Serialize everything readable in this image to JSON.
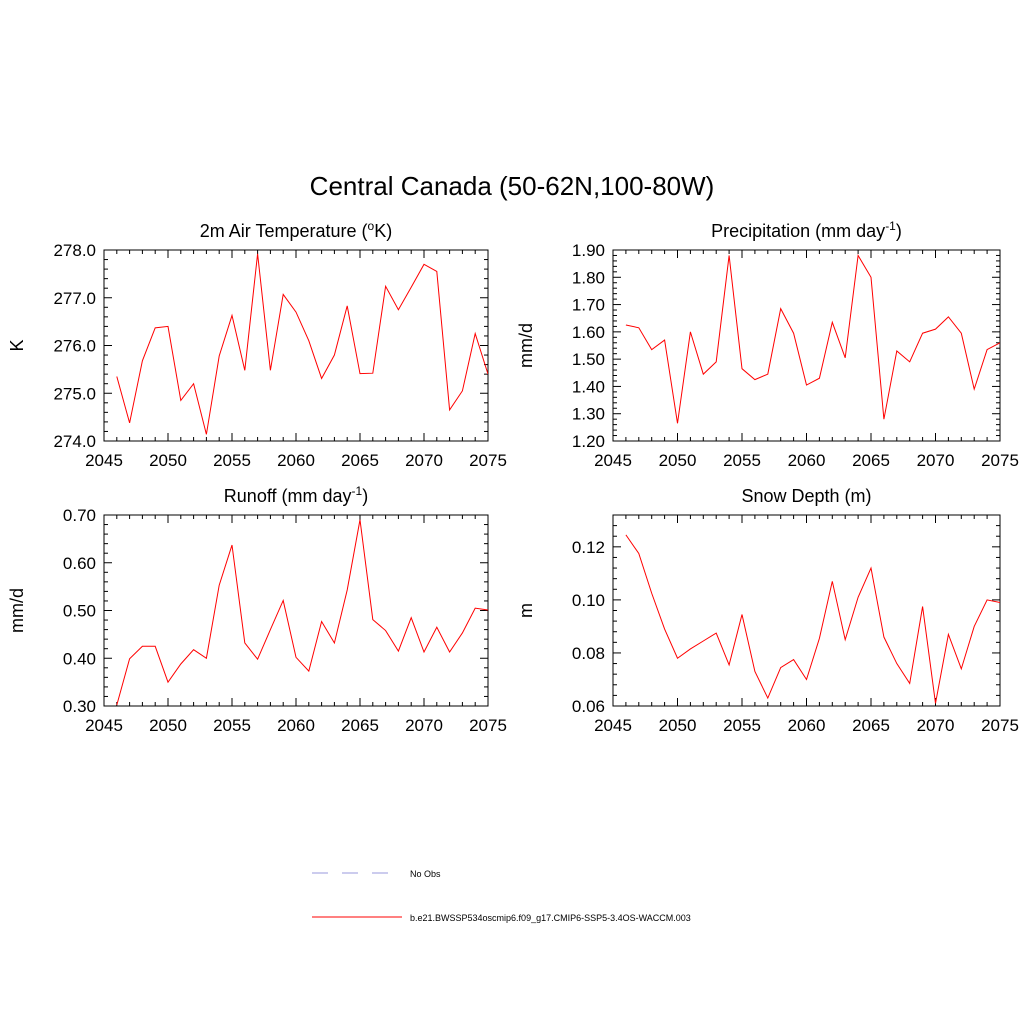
{
  "title": "Central Canada (50-62N,100-80W)",
  "colors": {
    "model": "#ff0000",
    "obs": "#9999dd",
    "axis": "#000000"
  },
  "legend": {
    "placement": "bottom-center",
    "items": [
      {
        "label": "No Obs",
        "style": "dashed",
        "color": "#9999dd"
      },
      {
        "label": "b.e21.BWSSP534oscmip6.f09_g17.CMIP6-SSP5-3.4OS-WACCM.003",
        "style": "solid",
        "color": "#ff0000"
      }
    ]
  },
  "chart_data": [
    {
      "type": "line",
      "title": "2m Air Temperature (",
      "title_sup": "o",
      "title_after": "K)",
      "ylabel": "K",
      "xlim": [
        2045,
        2075
      ],
      "ylim": [
        274.0,
        278.0
      ],
      "xticks": [
        2045,
        2050,
        2055,
        2060,
        2065,
        2070,
        2075
      ],
      "yticks": [
        "274.0",
        "275.0",
        "276.0",
        "277.0",
        "278.0"
      ],
      "x": [
        2046,
        2047,
        2048,
        2049,
        2050,
        2051,
        2052,
        2053,
        2054,
        2055,
        2056,
        2057,
        2058,
        2059,
        2060,
        2061,
        2062,
        2063,
        2064,
        2065,
        2066,
        2067,
        2068,
        2069,
        2070,
        2071,
        2072,
        2073,
        2074,
        2075
      ],
      "series": [
        {
          "name": "b.e21.BWSSP534oscmip6.f09_g17.CMIP6-SSP5-3.4OS-WACCM.003",
          "values": [
            275.35,
            274.38,
            275.68,
            276.37,
            276.4,
            274.85,
            275.2,
            274.14,
            275.78,
            276.63,
            275.48,
            277.92,
            275.48,
            277.07,
            276.7,
            276.1,
            275.31,
            275.8,
            276.83,
            275.41,
            275.42,
            277.24,
            276.75,
            277.22,
            277.7,
            277.55,
            274.65,
            275.05,
            276.25,
            275.4
          ]
        }
      ]
    },
    {
      "type": "line",
      "title": "Precipitation (mm day",
      "title_sup": "-1",
      "title_after": ")",
      "ylabel": "mm/d",
      "xlim": [
        2045,
        2075
      ],
      "ylim": [
        1.2,
        1.9
      ],
      "xticks": [
        2045,
        2050,
        2055,
        2060,
        2065,
        2070,
        2075
      ],
      "yticks": [
        "1.20",
        "1.30",
        "1.40",
        "1.50",
        "1.60",
        "1.70",
        "1.80",
        "1.90"
      ],
      "x": [
        2046,
        2047,
        2048,
        2049,
        2050,
        2051,
        2052,
        2053,
        2054,
        2055,
        2056,
        2057,
        2058,
        2059,
        2060,
        2061,
        2062,
        2063,
        2064,
        2065,
        2066,
        2067,
        2068,
        2069,
        2070,
        2071,
        2072,
        2073,
        2074,
        2075
      ],
      "series": [
        {
          "name": "b.e21.BWSSP534oscmip6.f09_g17.CMIP6-SSP5-3.4OS-WACCM.003",
          "values": [
            1.625,
            1.615,
            1.535,
            1.57,
            1.265,
            1.6,
            1.445,
            1.49,
            1.88,
            1.465,
            1.425,
            1.445,
            1.685,
            1.595,
            1.405,
            1.43,
            1.635,
            1.505,
            1.88,
            1.8,
            1.28,
            1.53,
            1.49,
            1.595,
            1.61,
            1.655,
            1.595,
            1.39,
            1.535,
            1.56
          ]
        }
      ]
    },
    {
      "type": "line",
      "title": "Runoff (mm day",
      "title_sup": "-1",
      "title_after": ")",
      "ylabel": "mm/d",
      "xlim": [
        2045,
        2075
      ],
      "ylim": [
        0.3,
        0.7
      ],
      "xticks": [
        2045,
        2050,
        2055,
        2060,
        2065,
        2070,
        2075
      ],
      "yticks": [
        "0.30",
        "0.40",
        "0.50",
        "0.60",
        "0.70"
      ],
      "x": [
        2046,
        2047,
        2048,
        2049,
        2050,
        2051,
        2052,
        2053,
        2054,
        2055,
        2056,
        2057,
        2058,
        2059,
        2060,
        2061,
        2062,
        2063,
        2064,
        2065,
        2066,
        2067,
        2068,
        2069,
        2070,
        2071,
        2072,
        2073,
        2074,
        2075
      ],
      "series": [
        {
          "name": "b.e21.BWSSP534oscmip6.f09_g17.CMIP6-SSP5-3.4OS-WACCM.003",
          "values": [
            0.302,
            0.399,
            0.425,
            0.425,
            0.35,
            0.388,
            0.418,
            0.4,
            0.553,
            0.637,
            0.432,
            0.398,
            0.46,
            0.521,
            0.402,
            0.373,
            0.477,
            0.432,
            0.543,
            0.69,
            0.481,
            0.458,
            0.415,
            0.485,
            0.413,
            0.465,
            0.413,
            0.453,
            0.505,
            0.501
          ]
        }
      ]
    },
    {
      "type": "line",
      "title": "Snow Depth (m)",
      "title_sup": "",
      "title_after": "",
      "ylabel": "m",
      "xlim": [
        2045,
        2075
      ],
      "ylim": [
        0.06,
        0.132
      ],
      "xticks": [
        2045,
        2050,
        2055,
        2060,
        2065,
        2070,
        2075
      ],
      "yticks": [
        "0.06",
        "0.08",
        "0.10",
        "0.12"
      ],
      "x": [
        2046,
        2047,
        2048,
        2049,
        2050,
        2051,
        2052,
        2053,
        2054,
        2055,
        2056,
        2057,
        2058,
        2059,
        2060,
        2061,
        2062,
        2063,
        2064,
        2065,
        2066,
        2067,
        2068,
        2069,
        2070,
        2071,
        2072,
        2073,
        2074,
        2075
      ],
      "series": [
        {
          "name": "b.e21.BWSSP534oscmip6.f09_g17.CMIP6-SSP5-3.4OS-WACCM.003",
          "values": [
            0.1245,
            0.1175,
            0.1025,
            0.089,
            0.078,
            0.0815,
            0.0845,
            0.0875,
            0.0755,
            0.0945,
            0.073,
            0.063,
            0.0745,
            0.0775,
            0.07,
            0.0855,
            0.107,
            0.085,
            0.101,
            0.112,
            0.086,
            0.076,
            0.0685,
            0.0975,
            0.061,
            0.087,
            0.074,
            0.09,
            0.1,
            0.099
          ]
        }
      ]
    }
  ]
}
